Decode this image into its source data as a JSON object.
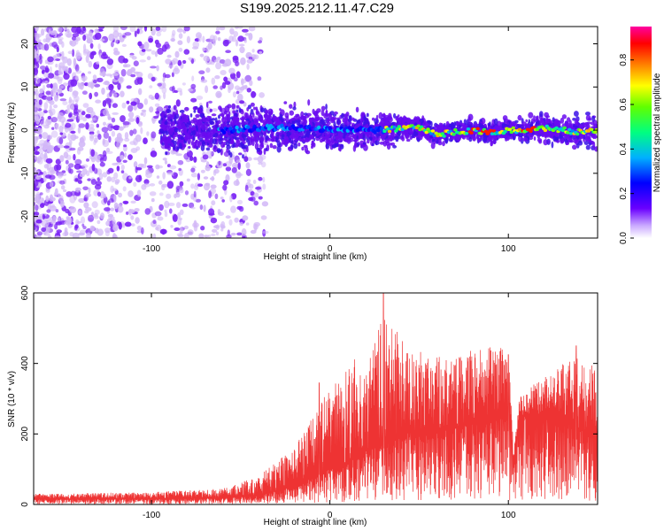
{
  "title": "S199.2025.212.11.47.C29",
  "chart_data": [
    {
      "type": "heatmap",
      "xlabel": "Height of straight line (km)",
      "ylabel": "Frequency (Hz)",
      "xlim": [
        -166,
        150
      ],
      "ylim": [
        -25,
        24
      ],
      "x_ticks": [
        "-100",
        "0",
        "100"
      ],
      "y_ticks": [
        "-20",
        "-10",
        "0",
        "10",
        "20"
      ],
      "colorbar": {
        "label": "Normalized spectral amplitude",
        "range": [
          0.0,
          0.95
        ],
        "ticks": [
          "0.0",
          "0.2",
          "0.4",
          "0.6",
          "0.8"
        ],
        "colormap": [
          "#ffffff",
          "#6a00ff",
          "#0000ff",
          "#00b0ff",
          "#00ff80",
          "#60ff00",
          "#ffff00",
          "#ff8000",
          "#ff0000",
          "#ff00a0"
        ]
      },
      "ridge_center_hz": [
        [
          -60,
          0.0
        ],
        [
          -40,
          0.5
        ],
        [
          -20,
          0.5
        ],
        [
          0,
          0.0
        ],
        [
          20,
          0.0
        ],
        [
          30,
          0.0
        ],
        [
          40,
          0.5
        ],
        [
          50,
          0.5
        ],
        [
          60,
          -1.0
        ],
        [
          70,
          -0.5
        ],
        [
          80,
          0.0
        ],
        [
          90,
          -0.5
        ],
        [
          100,
          0.0
        ],
        [
          110,
          0.0
        ],
        [
          120,
          0.5
        ],
        [
          130,
          0.0
        ],
        [
          140,
          -0.5
        ],
        [
          150,
          0.0
        ]
      ],
      "ridge_halfwidth_hz": [
        [
          -80,
          4.0
        ],
        [
          -60,
          4.5
        ],
        [
          -40,
          4.5
        ],
        [
          -20,
          4.0
        ],
        [
          0,
          4.0
        ],
        [
          20,
          3.5
        ],
        [
          40,
          2.5
        ],
        [
          60,
          2.0
        ],
        [
          80,
          2.0
        ],
        [
          100,
          2.0
        ],
        [
          120,
          2.5
        ],
        [
          140,
          3.0
        ],
        [
          150,
          3.5
        ]
      ]
    },
    {
      "type": "line",
      "xlabel": "Height of straight line (km)",
      "ylabel": "SNR (10 * v/v)",
      "xlim": [
        -166,
        150
      ],
      "ylim": [
        0,
        600
      ],
      "x_ticks": [
        "-100",
        "0",
        "100"
      ],
      "y_ticks": [
        "0",
        "200",
        "400",
        "600"
      ],
      "color": "#ee3333",
      "envelope": {
        "x": [
          -166,
          -100,
          -60,
          -40,
          -20,
          -10,
          0,
          10,
          20,
          30,
          40,
          50,
          60,
          70,
          80,
          90,
          100,
          103,
          106,
          110,
          120,
          130,
          140,
          150
        ],
        "base": [
          15,
          15,
          18,
          25,
          50,
          75,
          100,
          120,
          150,
          175,
          200,
          210,
          215,
          220,
          235,
          245,
          250,
          120,
          250,
          255,
          250,
          240,
          210,
          200
        ],
        "peak": [
          30,
          35,
          45,
          80,
          160,
          250,
          330,
          400,
          430,
          560,
          470,
          440,
          420,
          420,
          440,
          450,
          440,
          150,
          300,
          330,
          360,
          420,
          430,
          380
        ]
      },
      "notable_peaks": [
        [
          30,
          600
        ],
        [
          -6,
          345
        ],
        [
          100,
          425
        ],
        [
          138,
          450
        ]
      ]
    }
  ]
}
